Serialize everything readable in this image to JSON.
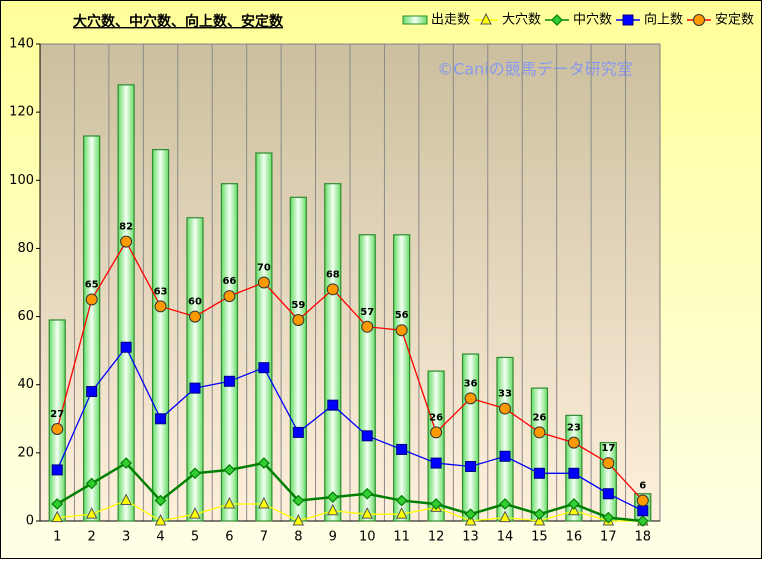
{
  "chart_data": {
    "type": "bar-line",
    "title": "大穴数、中穴数、向上数、安定数",
    "watermark": "©Caniの競馬データ研究室",
    "categories": [
      "1",
      "2",
      "3",
      "4",
      "5",
      "6",
      "7",
      "8",
      "9",
      "10",
      "11",
      "12",
      "13",
      "14",
      "15",
      "16",
      "17",
      "18"
    ],
    "series": [
      {
        "name": "出走数",
        "type": "bar",
        "color": "#2e8b2e",
        "values": [
          59,
          113,
          128,
          109,
          89,
          99,
          108,
          95,
          99,
          84,
          84,
          44,
          49,
          48,
          39,
          31,
          23,
          8
        ]
      },
      {
        "name": "大穴数",
        "type": "line",
        "marker": "triangle",
        "color": "#ffff00",
        "values": [
          1,
          2,
          6,
          0,
          2,
          5,
          5,
          0,
          3,
          2,
          2,
          4,
          0,
          1,
          0,
          3,
          0,
          0
        ]
      },
      {
        "name": "中穴数",
        "type": "line",
        "marker": "diamond",
        "color": "#008000",
        "values": [
          5,
          11,
          17,
          6,
          14,
          15,
          17,
          6,
          7,
          8,
          6,
          5,
          2,
          5,
          2,
          5,
          1,
          0
        ]
      },
      {
        "name": "向上数",
        "type": "line",
        "marker": "square",
        "color": "#0000ff",
        "values": [
          15,
          38,
          51,
          30,
          39,
          41,
          45,
          26,
          34,
          25,
          21,
          17,
          16,
          19,
          14,
          14,
          8,
          3
        ]
      },
      {
        "name": "安定数",
        "type": "line",
        "marker": "circle",
        "color": "#ff0000",
        "data_labels": true,
        "values": [
          27,
          65,
          82,
          63,
          60,
          66,
          70,
          59,
          68,
          57,
          56,
          26,
          36,
          33,
          26,
          23,
          17,
          6
        ]
      }
    ],
    "ylim": [
      0,
      140
    ],
    "yticks": [
      0,
      20,
      40,
      60,
      80,
      100,
      120,
      140
    ],
    "legend": "top-right"
  }
}
